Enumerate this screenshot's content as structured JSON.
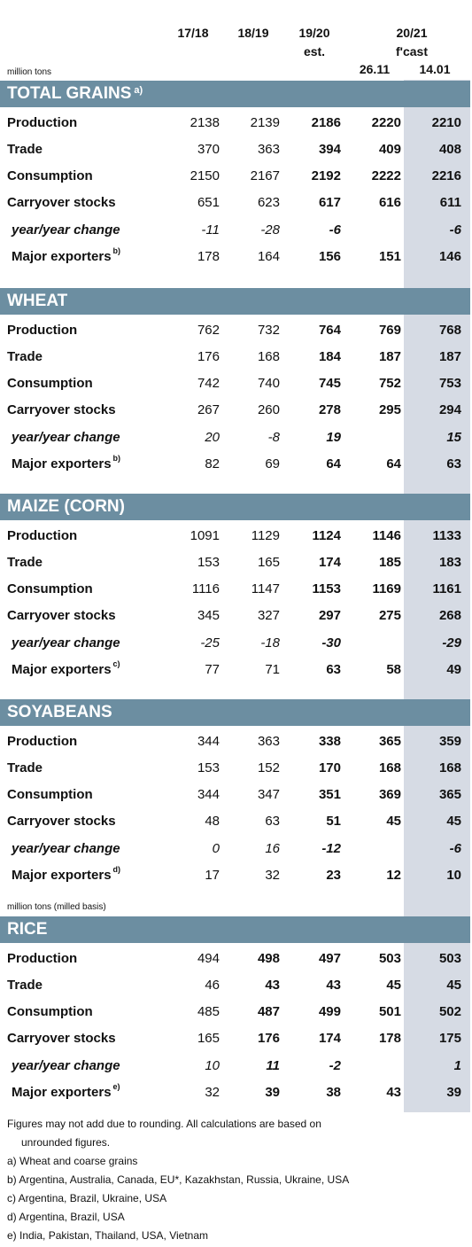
{
  "header": {
    "col1": "17/18",
    "col2": "18/19",
    "col3_line1": "19/20",
    "col3_line2": "est.",
    "col45_line1": "20/21",
    "col45_line2": "f'cast",
    "col4_line3": "26.11",
    "col5_line3": "14.01",
    "unit": "million tons"
  },
  "sections": [
    {
      "title": "TOTAL GRAINS",
      "sup": "a)",
      "rows": [
        {
          "label": "Production",
          "values": [
            "2138",
            "2139",
            "2186",
            "2220",
            "2210"
          ]
        },
        {
          "label": "Trade",
          "values": [
            "370",
            "363",
            "394",
            "409",
            "408"
          ]
        },
        {
          "label": "Consumption",
          "values": [
            "2150",
            "2167",
            "2192",
            "2222",
            "2216"
          ]
        },
        {
          "label": "Carryover stocks",
          "values": [
            "651",
            "623",
            "617",
            "616",
            "611"
          ]
        },
        {
          "label": "year/year change",
          "values": [
            "-11",
            "-28",
            "-6",
            "",
            "-6"
          ]
        },
        {
          "label": "Major exporters",
          "sup": "b)",
          "values": [
            "178",
            "164",
            "156",
            "151",
            "146"
          ]
        }
      ]
    },
    {
      "title": "WHEAT",
      "sup": "",
      "rows": [
        {
          "label": "Production",
          "values": [
            "762",
            "732",
            "764",
            "769",
            "768"
          ]
        },
        {
          "label": "Trade",
          "values": [
            "176",
            "168",
            "184",
            "187",
            "187"
          ]
        },
        {
          "label": "Consumption",
          "values": [
            "742",
            "740",
            "745",
            "752",
            "753"
          ]
        },
        {
          "label": "Carryover stocks",
          "values": [
            "267",
            "260",
            "278",
            "295",
            "294"
          ]
        },
        {
          "label": "year/year change",
          "values": [
            "20",
            "-8",
            "19",
            "",
            "15"
          ]
        },
        {
          "label": "Major exporters",
          "sup": "b)",
          "values": [
            "82",
            "69",
            "64",
            "64",
            "63"
          ]
        }
      ]
    },
    {
      "title": "MAIZE (CORN)",
      "sup": "",
      "rows": [
        {
          "label": "Production",
          "values": [
            "1091",
            "1129",
            "1124",
            "1146",
            "1133"
          ]
        },
        {
          "label": "Trade",
          "values": [
            "153",
            "165",
            "174",
            "185",
            "183"
          ]
        },
        {
          "label": "Consumption",
          "values": [
            "1116",
            "1147",
            "1153",
            "1169",
            "1161"
          ]
        },
        {
          "label": "Carryover stocks",
          "values": [
            "345",
            "327",
            "297",
            "275",
            "268"
          ]
        },
        {
          "label": "year/year change",
          "values": [
            "-25",
            "-18",
            "-30",
            "",
            "-29"
          ]
        },
        {
          "label": "Major exporters",
          "sup": "c)",
          "values": [
            "77",
            "71",
            "63",
            "58",
            "49"
          ]
        }
      ]
    },
    {
      "title": "SOYABEANS",
      "sup": "",
      "rows": [
        {
          "label": "Production",
          "values": [
            "344",
            "363",
            "338",
            "365",
            "359"
          ]
        },
        {
          "label": "Trade",
          "values": [
            "153",
            "152",
            "170",
            "168",
            "168"
          ]
        },
        {
          "label": "Consumption",
          "values": [
            "344",
            "347",
            "351",
            "369",
            "365"
          ]
        },
        {
          "label": "Carryover stocks",
          "values": [
            "48",
            "63",
            "51",
            "45",
            "45"
          ]
        },
        {
          "label": "year/year change",
          "values": [
            "0",
            "16",
            "-12",
            "",
            "-6"
          ]
        },
        {
          "label": "Major exporters",
          "sup": "d)",
          "values": [
            "17",
            "32",
            "23",
            "12",
            "10"
          ]
        }
      ]
    },
    {
      "title": "RICE",
      "sup": "",
      "unit": "million tons (milled basis)",
      "rows": [
        {
          "label": "Production",
          "values": [
            "494",
            "498",
            "497",
            "503",
            "503"
          ]
        },
        {
          "label": "Trade",
          "values": [
            "46",
            "43",
            "43",
            "45",
            "45"
          ]
        },
        {
          "label": "Consumption",
          "values": [
            "485",
            "487",
            "499",
            "501",
            "502"
          ]
        },
        {
          "label": "Carryover stocks",
          "values": [
            "165",
            "176",
            "174",
            "178",
            "175"
          ]
        },
        {
          "label": "year/year change",
          "values": [
            "10",
            "11",
            "-2",
            "",
            "1"
          ]
        },
        {
          "label": "Major exporters",
          "sup": "e)",
          "values": [
            "32",
            "39",
            "38",
            "43",
            "39"
          ]
        }
      ]
    }
  ],
  "notes": {
    "line1": "Figures may not add due to rounding. All calculations are based on",
    "line2": "unrounded figures.",
    "a": "a) Wheat and coarse grains",
    "b": "b) Argentina, Australia, Canada, EU*, Kazakhstan, Russia, Ukraine, USA",
    "c": "c) Argentina, Brazil, Ukraine, USA",
    "d": "d) Argentina, Brazil, USA",
    "e": "e) India, Pakistan, Thailand, USA, Vietnam"
  }
}
